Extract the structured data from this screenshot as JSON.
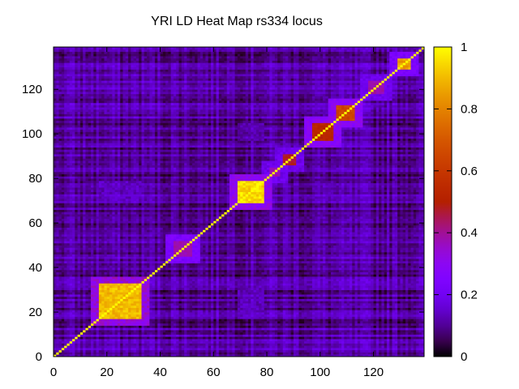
{
  "chart_data": {
    "type": "heatmap",
    "title": "YRI LD Heat Map rs334 locus",
    "xlabel": "",
    "ylabel": "",
    "n": 139,
    "xlim": [
      0,
      139
    ],
    "ylim": [
      0,
      139
    ],
    "x_ticks": [
      0,
      20,
      40,
      60,
      80,
      100,
      120
    ],
    "y_ticks": [
      0,
      20,
      40,
      60,
      80,
      100,
      120
    ],
    "colorbar": {
      "min": 0,
      "max": 1,
      "ticks": [
        0,
        0.2,
        0.4,
        0.6,
        0.8,
        1
      ],
      "tick_labels": [
        "0",
        "0.2",
        "0.4",
        "0.6",
        "0.8",
        "1"
      ],
      "palette": "black-purple-red-orange-yellow"
    },
    "diagonal_value": 1.0,
    "background_range": [
      0.0,
      0.22
    ],
    "ld_blocks": [
      {
        "start": 17,
        "end": 32,
        "value": 0.95,
        "halo": 0.35
      },
      {
        "start": 69,
        "end": 78,
        "value": 1.0,
        "halo": 0.32
      },
      {
        "start": 45,
        "end": 51,
        "value": 0.4,
        "halo": 0.25
      },
      {
        "start": 97,
        "end": 104,
        "value": 0.55,
        "halo": 0.3
      },
      {
        "start": 106,
        "end": 112,
        "value": 0.68,
        "halo": 0.3
      },
      {
        "start": 86,
        "end": 90,
        "value": 0.5,
        "halo": 0.2
      },
      {
        "start": 118,
        "end": 123,
        "value": 0.4,
        "halo": 0.2
      },
      {
        "start": 129,
        "end": 133,
        "value": 0.9,
        "halo": 0.25
      },
      {
        "start": 81,
        "end": 84,
        "value": 0.4,
        "halo": 0.2
      }
    ],
    "off_diagonal_blocks": [
      {
        "rows": [
          69,
          78
        ],
        "cols": [
          17,
          32
        ],
        "value": 0.14
      },
      {
        "rows": [
          97,
          104
        ],
        "cols": [
          69,
          78
        ],
        "value": 0.12
      },
      {
        "rows": [
          69,
          78
        ],
        "cols": [
          97,
          104
        ],
        "value": 0.12
      },
      {
        "rows": [
          17,
          32
        ],
        "cols": [
          69,
          78
        ],
        "value": 0.14
      }
    ]
  }
}
